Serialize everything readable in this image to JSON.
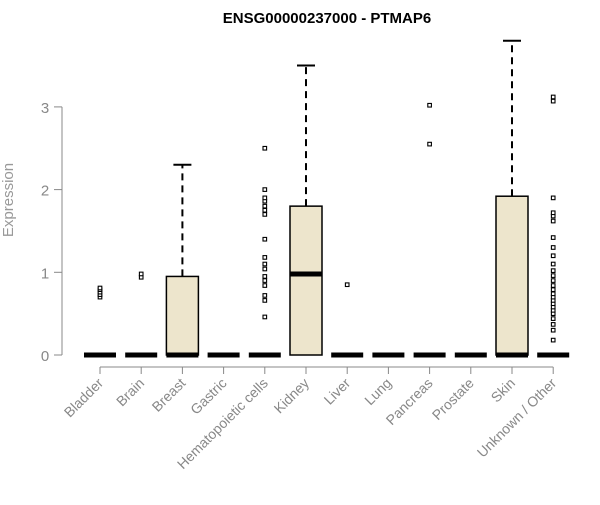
{
  "chart_data": {
    "type": "boxplot",
    "title": "ENSG00000237000 - PTMAP6",
    "xlabel": "",
    "ylabel": "Expression",
    "y_ticks": [
      0,
      1,
      2,
      3
    ],
    "ylim": [
      0,
      3.85
    ],
    "box_fill": "#ede5cc",
    "axis_color": "#888888",
    "grid": false,
    "categories": [
      "Bladder",
      "Brain",
      "Breast",
      "Gastric",
      "Hematopoietic cells",
      "Kidney",
      "Liver",
      "Lung",
      "Pancreas",
      "Prostate",
      "Skin",
      "Unknown / Other"
    ],
    "boxes": [
      {
        "q1": 0,
        "median": 0,
        "q3": 0,
        "whisker_low": 0,
        "whisker_high": 0,
        "outliers": [
          0.7,
          0.73,
          0.76,
          0.79,
          0.81
        ]
      },
      {
        "q1": 0,
        "median": 0,
        "q3": 0,
        "whisker_low": 0,
        "whisker_high": 0,
        "outliers": [
          0.94,
          0.98
        ]
      },
      {
        "q1": 0,
        "median": 0,
        "q3": 0.95,
        "whisker_low": 0,
        "whisker_high": 2.3,
        "outliers": []
      },
      {
        "q1": 0,
        "median": 0,
        "q3": 0,
        "whisker_low": 0,
        "whisker_high": 0,
        "outliers": []
      },
      {
        "q1": 0,
        "median": 0,
        "q3": 0,
        "whisker_low": 0,
        "whisker_high": 0,
        "outliers": [
          0.46,
          0.66,
          0.72,
          0.84,
          0.9,
          0.95,
          1.04,
          1.1,
          1.18,
          1.4,
          1.7,
          1.75,
          1.8,
          1.86,
          1.9,
          2.0,
          2.5
        ]
      },
      {
        "q1": 0,
        "median": 0.98,
        "q3": 1.8,
        "whisker_low": 0,
        "whisker_high": 3.5,
        "outliers": []
      },
      {
        "q1": 0,
        "median": 0,
        "q3": 0,
        "whisker_low": 0,
        "whisker_high": 0,
        "outliers": [
          0.85
        ]
      },
      {
        "q1": 0,
        "median": 0,
        "q3": 0,
        "whisker_low": 0,
        "whisker_high": 0,
        "outliers": []
      },
      {
        "q1": 0,
        "median": 0,
        "q3": 0,
        "whisker_low": 0,
        "whisker_high": 0,
        "outliers": [
          2.55,
          3.02
        ]
      },
      {
        "q1": 0,
        "median": 0,
        "q3": 0,
        "whisker_low": 0,
        "whisker_high": 0,
        "outliers": []
      },
      {
        "q1": 0,
        "median": 0,
        "q3": 1.92,
        "whisker_low": 0,
        "whisker_high": 3.8,
        "outliers": []
      },
      {
        "q1": 0,
        "median": 0,
        "q3": 0,
        "whisker_low": 0,
        "whisker_high": 0,
        "outliers": [
          0.18,
          0.3,
          0.37,
          0.44,
          0.5,
          0.54,
          0.58,
          0.62,
          0.66,
          0.7,
          0.74,
          0.79,
          0.84,
          0.9,
          0.96,
          1.02,
          1.1,
          1.2,
          1.3,
          1.42,
          1.62,
          1.68,
          1.72,
          1.9,
          3.07,
          3.12
        ]
      }
    ]
  }
}
